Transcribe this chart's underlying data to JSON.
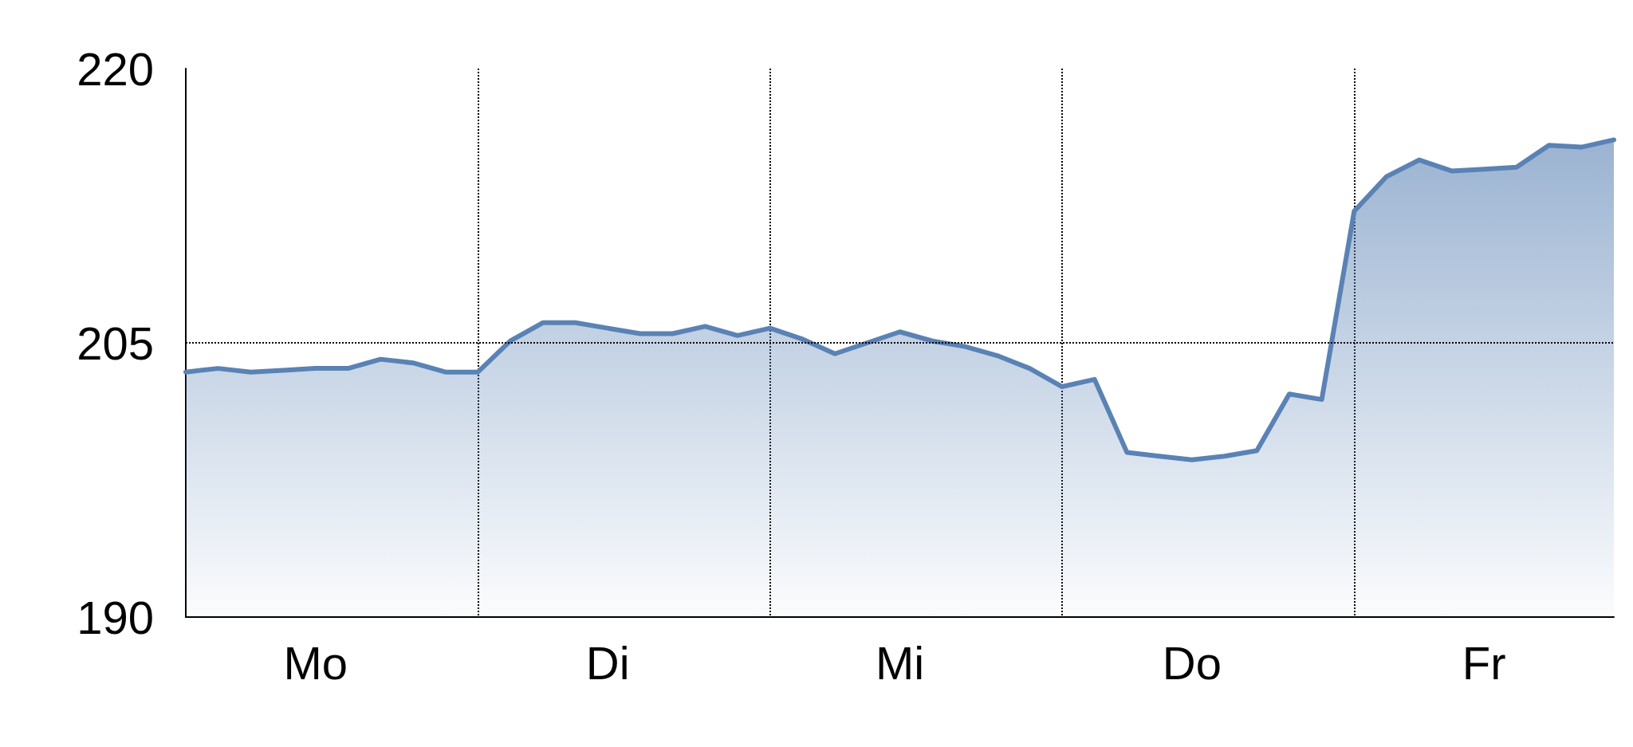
{
  "chart_data": {
    "type": "area",
    "categories": [
      null,
      null,
      null,
      null,
      "Mo",
      null,
      null,
      null,
      null,
      null,
      null,
      null,
      null,
      "Di",
      null,
      null,
      null,
      null,
      null,
      null,
      null,
      null,
      "Mi",
      null,
      null,
      null,
      null,
      null,
      null,
      null,
      null,
      "Do",
      null,
      null,
      null,
      null,
      null,
      null,
      null,
      null,
      "Fr",
      null,
      null,
      null,
      null
    ],
    "series": [
      {
        "color": "#5a82b4",
        "values": [
          203.4,
          203.6,
          203.4,
          203.5,
          203.6,
          203.6,
          204.1,
          203.9,
          203.4,
          203.4,
          205.1,
          206.1,
          206.1,
          205.8,
          205.5,
          205.5,
          205.9,
          205.4,
          205.8,
          205.2,
          204.4,
          205.0,
          205.6,
          205.1,
          204.8,
          204.3,
          203.6,
          202.6,
          203.0,
          199.0,
          198.8,
          198.6,
          198.8,
          199.1,
          202.2,
          201.9,
          212.2,
          214.1,
          215.0,
          214.4,
          214.5,
          214.6,
          215.8,
          215.7,
          216.1
        ]
      }
    ],
    "ylim": [
      190,
      220
    ],
    "yticks": [
      190,
      205,
      220
    ],
    "ref_lines": [
      {
        "axis": "y",
        "value": 205,
        "line_style": "dotted"
      }
    ],
    "grid": "x",
    "marker": "none",
    "line_style": "solid"
  }
}
